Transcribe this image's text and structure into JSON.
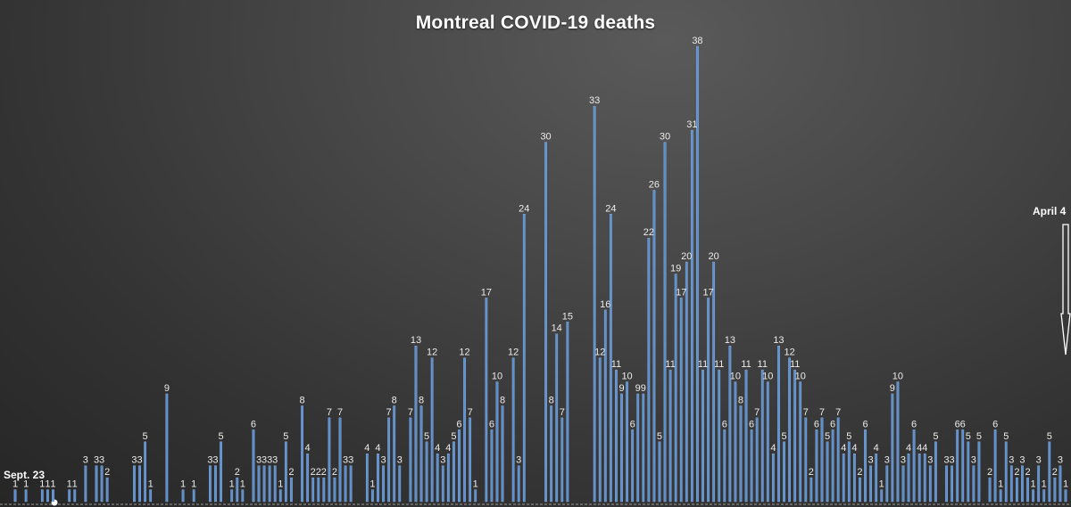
{
  "chart_data": {
    "type": "bar",
    "title": "Montreal COVID-19 deaths",
    "start_label": "Sept. 23",
    "end_label": "April 4",
    "values": [
      1,
      0,
      1,
      0,
      0,
      1,
      1,
      1,
      0,
      0,
      1,
      1,
      0,
      3,
      0,
      3,
      3,
      2,
      0,
      0,
      0,
      0,
      3,
      3,
      5,
      1,
      0,
      0,
      9,
      0,
      0,
      1,
      0,
      1,
      0,
      0,
      3,
      3,
      5,
      0,
      1,
      2,
      1,
      0,
      6,
      3,
      3,
      3,
      3,
      1,
      5,
      2,
      0,
      8,
      4,
      2,
      2,
      2,
      7,
      2,
      7,
      3,
      3,
      0,
      0,
      4,
      1,
      4,
      3,
      7,
      8,
      3,
      0,
      7,
      13,
      8,
      5,
      12,
      4,
      3,
      4,
      5,
      6,
      12,
      7,
      1,
      0,
      17,
      6,
      10,
      8,
      0,
      12,
      3,
      24,
      0,
      0,
      0,
      30,
      8,
      14,
      7,
      15,
      0,
      0,
      0,
      0,
      33,
      12,
      16,
      24,
      11,
      9,
      10,
      6,
      9,
      9,
      22,
      26,
      5,
      30,
      11,
      19,
      17,
      20,
      31,
      38,
      11,
      17,
      20,
      11,
      6,
      13,
      10,
      8,
      11,
      6,
      7,
      11,
      10,
      4,
      13,
      5,
      12,
      11,
      10,
      7,
      2,
      6,
      7,
      5,
      6,
      7,
      4,
      5,
      4,
      2,
      6,
      3,
      4,
      1,
      3,
      9,
      10,
      3,
      4,
      6,
      4,
      4,
      3,
      5,
      0,
      3,
      3,
      6,
      6,
      5,
      3,
      5,
      0,
      2,
      6,
      1,
      5,
      3,
      2,
      3,
      2,
      1,
      3,
      1,
      5,
      2,
      3,
      1
    ],
    "ylim": [
      0,
      40
    ],
    "grid": false,
    "legend": "none"
  }
}
